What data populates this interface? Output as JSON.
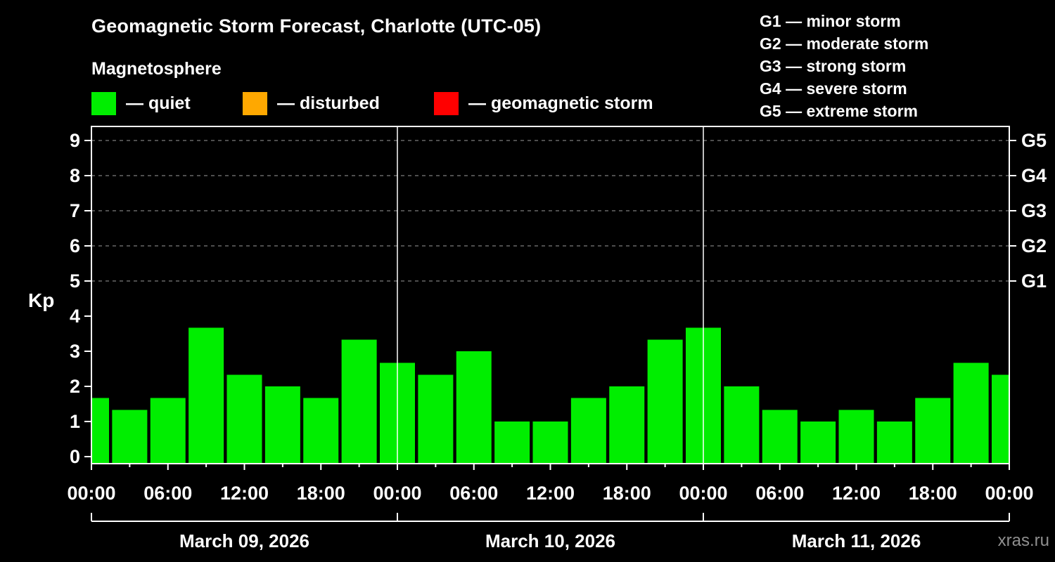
{
  "header": {
    "title": "Geomagnetic Storm Forecast, Charlotte (UTC-05)",
    "subtitle": "Magnetosphere"
  },
  "legend": {
    "items": [
      {
        "label": "— quiet",
        "color": "#00ee00"
      },
      {
        "label": "— disturbed",
        "color": "#ffa800"
      },
      {
        "label": "— geomagnetic storm",
        "color": "#ff0000"
      }
    ]
  },
  "g_legend": {
    "items": [
      "G1 — minor storm",
      "G2 — moderate storm",
      "G3 — strong storm",
      "G4 — severe storm",
      "G5 — extreme storm"
    ]
  },
  "watermark": "xras.ru",
  "chart_data": {
    "type": "bar",
    "title": "Geomagnetic Storm Forecast, Charlotte (UTC-05)",
    "ylabel": "Kp",
    "ylim": [
      0,
      9.5
    ],
    "bar_color": "#00ee00",
    "grid": "dashed horizontal lines at storm thresholds, legend top-right",
    "grid_levels": [
      5,
      6,
      7,
      8,
      9
    ],
    "x_hours": [
      0,
      3,
      6,
      9,
      12,
      15,
      18,
      21,
      24,
      27,
      30,
      33,
      36,
      39,
      42,
      45,
      48,
      51,
      54,
      57,
      60,
      63,
      66,
      69,
      72
    ],
    "values": [
      1.67,
      1.33,
      1.67,
      3.67,
      2.33,
      2.0,
      1.67,
      3.33,
      2.67,
      2.33,
      3.0,
      1.0,
      1.0,
      1.67,
      2.0,
      3.33,
      3.67,
      2.0,
      1.33,
      1.0,
      1.33,
      1.0,
      1.67,
      2.67,
      2.33
    ],
    "y_ticks": [
      0,
      1,
      2,
      3,
      4,
      5,
      6,
      7,
      8,
      9
    ],
    "right_axis": [
      {
        "kp": 9,
        "label": "G5"
      },
      {
        "kp": 8,
        "label": "G4"
      },
      {
        "kp": 7,
        "label": "G3"
      },
      {
        "kp": 6,
        "label": "G2"
      },
      {
        "kp": 5,
        "label": "G1"
      }
    ],
    "x_tick_hours": [
      0,
      6,
      12,
      18,
      24,
      30,
      36,
      42,
      48,
      54,
      60,
      66,
      72
    ],
    "x_tick_labels": [
      "00:00",
      "06:00",
      "12:00",
      "18:00",
      "00:00",
      "06:00",
      "12:00",
      "18:00",
      "00:00",
      "06:00",
      "12:00",
      "18:00",
      "00:00"
    ],
    "day_boundary_hours": [
      24,
      48
    ],
    "dates": [
      {
        "label": "March 09, 2026",
        "center_hour": 12
      },
      {
        "label": "March 10, 2026",
        "center_hour": 36
      },
      {
        "label": "March 11, 2026",
        "center_hour": 60
      }
    ]
  }
}
